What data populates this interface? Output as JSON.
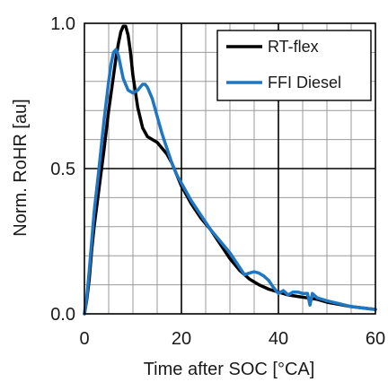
{
  "chart_data": {
    "type": "line",
    "xlabel": "Time after SOC [°CA]",
    "ylabel": "Norm. RoHR [au]",
    "xlim": [
      0,
      60
    ],
    "ylim": [
      0,
      1
    ],
    "x_ticks": [
      0,
      20,
      40,
      60
    ],
    "y_ticks": [
      0.0,
      0.5,
      1.0
    ],
    "x_tick_labels": [
      "0",
      "20",
      "40",
      "60"
    ],
    "y_tick_labels": [
      "0.0",
      "0.5",
      "1.0"
    ],
    "x_minor_step": 5,
    "y_minor_step": 0.1,
    "x_major_step": 20,
    "y_major_step": 0.5,
    "grid": true,
    "legend_position": "top-right",
    "series": [
      {
        "name": "RT-flex",
        "color": "#000000",
        "x": [
          0,
          0.5,
          1,
          1.5,
          2,
          3,
          4,
          5,
          6,
          6.5,
          7,
          7.5,
          8,
          8.5,
          9,
          9.5,
          10,
          11,
          12,
          13,
          14,
          15,
          16,
          17,
          18,
          19,
          20,
          22,
          24,
          26,
          28,
          30,
          32,
          34,
          36,
          38,
          40,
          42,
          44,
          46,
          48,
          50,
          55,
          60
        ],
        "y": [
          0,
          0.05,
          0.12,
          0.22,
          0.3,
          0.43,
          0.56,
          0.7,
          0.82,
          0.88,
          0.93,
          0.97,
          0.99,
          0.99,
          0.96,
          0.9,
          0.82,
          0.71,
          0.64,
          0.61,
          0.6,
          0.59,
          0.57,
          0.55,
          0.52,
          0.48,
          0.44,
          0.38,
          0.33,
          0.29,
          0.24,
          0.19,
          0.15,
          0.12,
          0.1,
          0.085,
          0.075,
          0.065,
          0.06,
          0.055,
          0.05,
          0.04,
          0.025,
          0.015
        ]
      },
      {
        "name": "FFI Diesel",
        "color": "#1f77c4",
        "x": [
          0,
          0.5,
          1,
          1.5,
          2,
          3,
          4,
          5,
          5.5,
          6,
          6.5,
          7,
          7.5,
          8,
          9,
          10,
          11,
          12,
          12.5,
          13,
          14,
          15,
          16,
          17,
          18,
          19,
          20,
          22,
          24,
          26,
          28,
          30,
          32,
          33,
          34,
          35,
          36,
          37,
          38,
          39,
          40,
          41,
          42,
          43,
          44,
          45,
          46,
          46.5,
          47,
          48,
          50,
          55,
          60
        ],
        "y": [
          0,
          0.06,
          0.15,
          0.25,
          0.35,
          0.5,
          0.66,
          0.8,
          0.86,
          0.9,
          0.91,
          0.89,
          0.85,
          0.81,
          0.77,
          0.76,
          0.77,
          0.79,
          0.79,
          0.78,
          0.74,
          0.68,
          0.62,
          0.57,
          0.52,
          0.48,
          0.45,
          0.39,
          0.34,
          0.29,
          0.25,
          0.21,
          0.16,
          0.135,
          0.14,
          0.145,
          0.14,
          0.13,
          0.115,
          0.09,
          0.07,
          0.08,
          0.065,
          0.075,
          0.075,
          0.07,
          0.07,
          0.03,
          0.07,
          0.055,
          0.045,
          0.025,
          0.015
        ]
      }
    ]
  }
}
